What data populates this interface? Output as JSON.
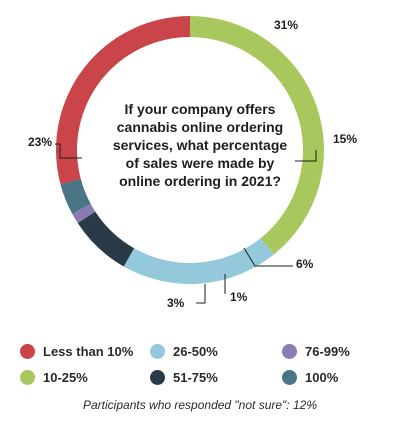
{
  "chart_data": {
    "type": "pie",
    "donut": true,
    "title": "If your company offers cannabis online ordering services, what percentage of sales were made by online ordering in 2021?",
    "categories": [
      "10-25%",
      "26-50%",
      "51-75%",
      "76-99%",
      "100%",
      "Less than 10%"
    ],
    "values": [
      31,
      15,
      6,
      1,
      3,
      23
    ],
    "value_labels": [
      "31%",
      "15%",
      "6%",
      "1%",
      "3%",
      "23%"
    ],
    "colors": [
      "#a8c75c",
      "#94c9dc",
      "#2a3a48",
      "#8b7bb5",
      "#4a7585",
      "#c9454a"
    ],
    "legend_position": "bottom",
    "footnote": "Participants who responded \"not sure\": 12%"
  },
  "legend": [
    {
      "label": "Less than 10%",
      "color": "#c9454a"
    },
    {
      "label": "26-50%",
      "color": "#94c9dc"
    },
    {
      "label": "76-99%",
      "color": "#8b7bb5"
    },
    {
      "label": "10-25%",
      "color": "#a8c75c"
    },
    {
      "label": "51-75%",
      "color": "#2a3a48"
    },
    {
      "label": "100%",
      "color": "#4a7585"
    }
  ]
}
